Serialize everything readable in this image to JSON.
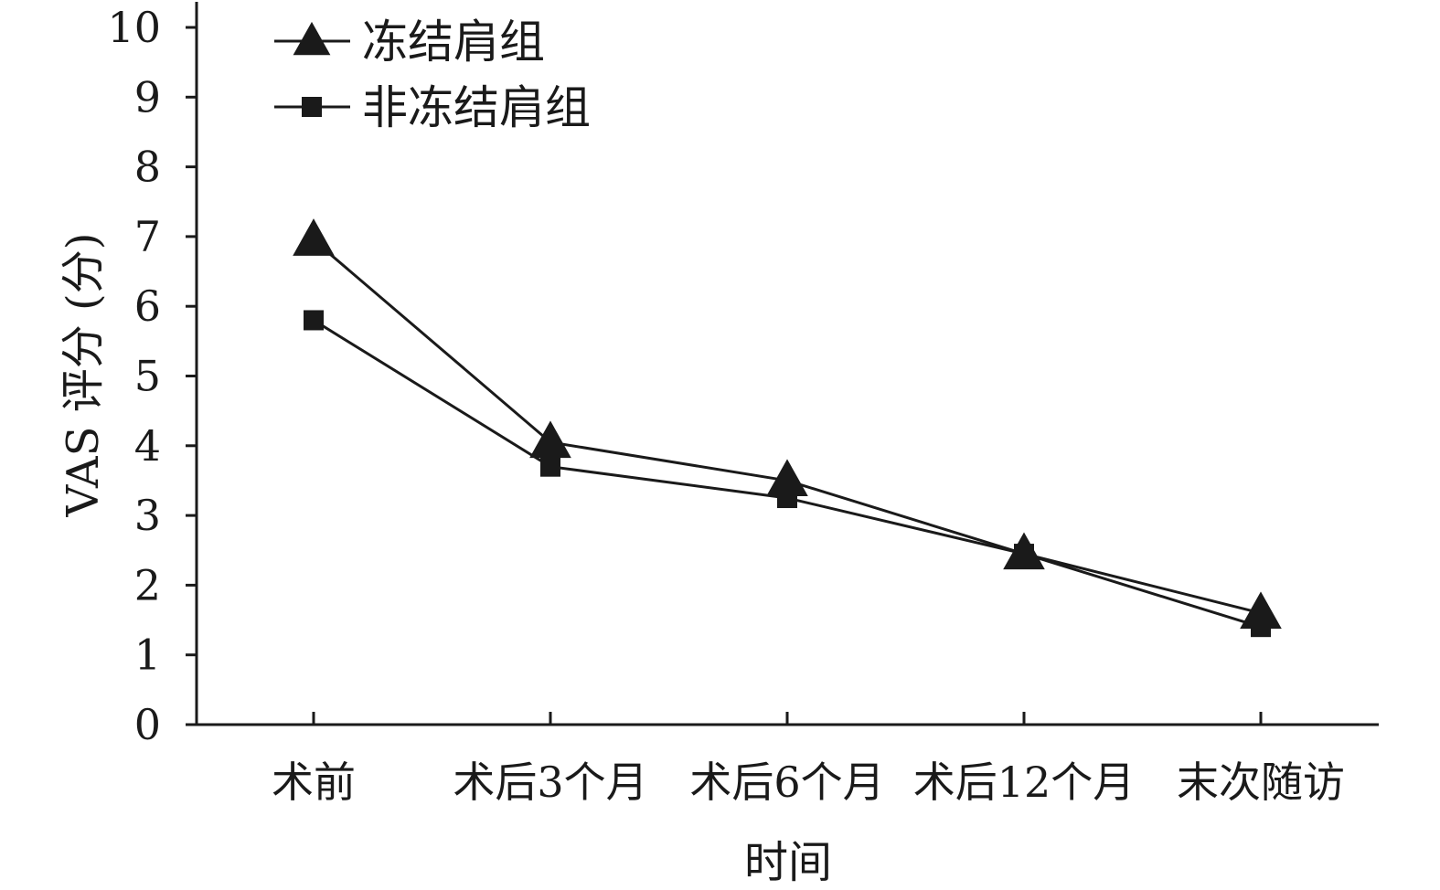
{
  "chart_data": {
    "type": "line",
    "xlabel": "时间",
    "ylabel": "VAS 评分 (分)",
    "categories": [
      "术前",
      "术后3个月",
      "术后6个月",
      "术后12个月",
      "末次随访"
    ],
    "ylim": [
      0,
      10
    ],
    "yticks": [
      0,
      1,
      2,
      3,
      4,
      5,
      6,
      7,
      8,
      9,
      10
    ],
    "grid": false,
    "legend_position": "top-left",
    "series": [
      {
        "name": "冻结肩组",
        "marker": "triangle",
        "values": [
          6.95,
          4.05,
          3.5,
          2.45,
          1.6
        ]
      },
      {
        "name": "非冻结肩组",
        "marker": "square",
        "values": [
          5.8,
          3.7,
          3.25,
          2.45,
          1.4
        ]
      }
    ],
    "colors": {
      "line": "#1a1a1a",
      "marker": "#1a1a1a",
      "axis": "#1a1a1a"
    }
  }
}
